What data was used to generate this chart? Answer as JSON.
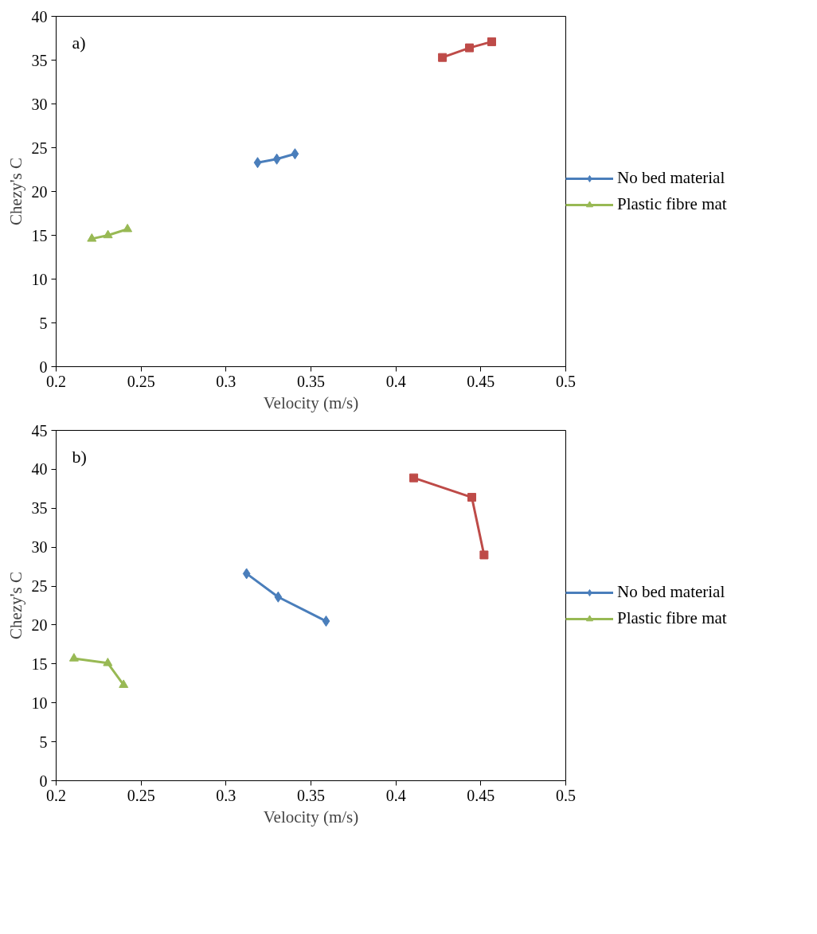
{
  "chart_data": [
    {
      "type": "line",
      "annotations": [
        "a)"
      ],
      "xlabel": "Velocity (m/s)",
      "ylabel": "Chezy's C",
      "xlim": [
        0.2,
        0.5
      ],
      "xticks": [
        0.2,
        0.25,
        0.3,
        0.35,
        0.4,
        0.45,
        0.5
      ],
      "ylim": [
        0,
        40
      ],
      "yticks": [
        0,
        5,
        10,
        15,
        20,
        25,
        30,
        35,
        40
      ],
      "grid": false,
      "legend": "right",
      "line_style": "solid",
      "series": [
        {
          "name": "No bed material",
          "color": "#4a7ebb",
          "marker": "diamond",
          "x": [
            0.3186,
            0.3299,
            0.3406
          ],
          "values": [
            23.3,
            23.7,
            24.3
          ]
        },
        {
          "color": "#be4b48",
          "marker": "square",
          "x": [
            0.4274,
            0.4433,
            0.4564
          ],
          "values": [
            35.3,
            36.4,
            37.1
          ]
        },
        {
          "name": "Plastic fibre mat",
          "color": "#98b954",
          "marker": "triangle",
          "x": [
            0.221,
            0.2305,
            0.242
          ],
          "values": [
            14.6,
            15.0,
            15.7
          ]
        }
      ]
    },
    {
      "type": "line",
      "annotations": [
        "b)"
      ],
      "xlabel": "Velocity (m/s)",
      "ylabel": "Chezy's C",
      "xlim": [
        0.2,
        0.5
      ],
      "xticks": [
        0.2,
        0.25,
        0.3,
        0.35,
        0.4,
        0.45,
        0.5
      ],
      "ylim": [
        0,
        45
      ],
      "yticks": [
        0,
        5,
        10,
        15,
        20,
        25,
        30,
        35,
        40,
        45
      ],
      "grid": false,
      "legend": "right",
      "line_style": "solid",
      "series": [
        {
          "name": "No bed material",
          "color": "#4a7ebb",
          "marker": "diamond",
          "x": [
            0.3121,
            0.3307,
            0.3589
          ],
          "values": [
            26.6,
            23.6,
            20.5
          ]
        },
        {
          "color": "#be4b48",
          "marker": "square",
          "x": [
            0.4105,
            0.4447,
            0.4519
          ],
          "values": [
            38.9,
            36.4,
            29.0
          ]
        },
        {
          "name": "Plastic fibre mat",
          "color": "#98b954",
          "marker": "triangle",
          "x": [
            0.2105,
            0.2304,
            0.2397
          ],
          "values": [
            15.7,
            15.1,
            12.3
          ]
        }
      ]
    }
  ]
}
